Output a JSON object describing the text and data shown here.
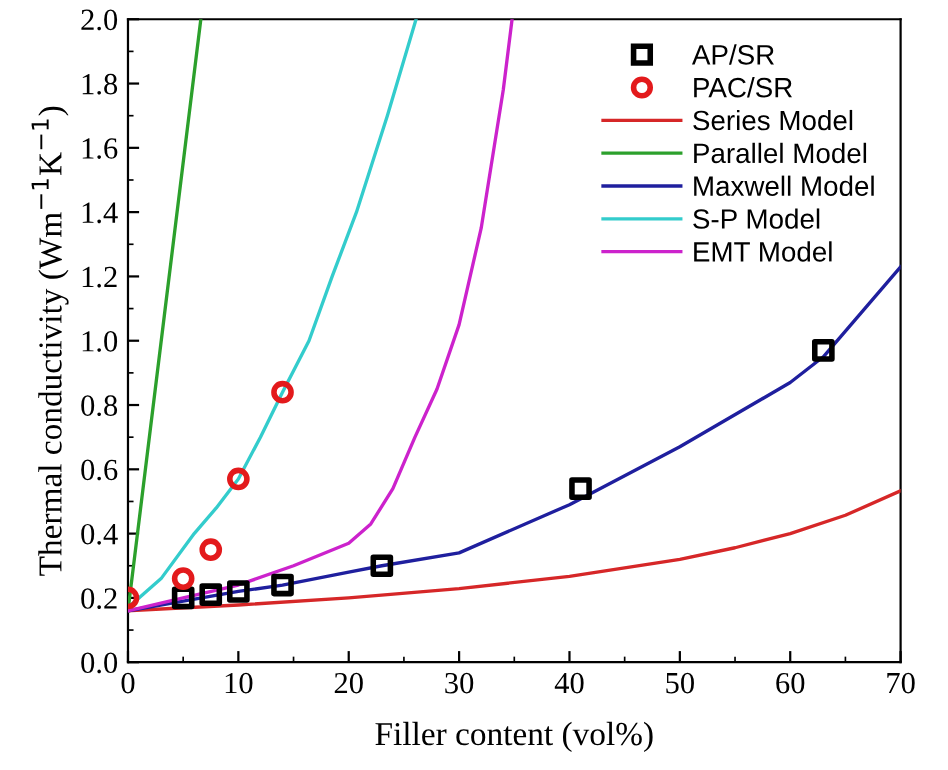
{
  "chart_data": {
    "type": "scatter",
    "xlabel": "Filler content (vol%)",
    "ylabel": "Thermal conductivity (Wm$^{−1}$K$^{−1}$)",
    "xlim": [
      0,
      70
    ],
    "ylim": [
      0,
      2.0
    ],
    "xticks": [
      0,
      10,
      20,
      30,
      40,
      50,
      60,
      70
    ],
    "yticks": [
      {
        "value": 0,
        "label": "0.0"
      },
      0.2,
      0.4,
      0.6,
      0.8,
      {
        "value": 1.0,
        "label": "1.0"
      },
      1.2,
      1.4,
      1.6,
      1.8,
      {
        "value": 2.0,
        "label": "2.0"
      }
    ],
    "grid": false,
    "legend": "top right",
    "series": [
      {
        "name": "AP/SR",
        "marker": "square",
        "color": "#000000",
        "x": [
          5,
          7.5,
          10,
          14,
          23,
          41,
          63
        ],
        "values": [
          0.2,
          0.21,
          0.22,
          0.24,
          0.3,
          0.54,
          0.97
        ]
      },
      {
        "name": "PAC/SR",
        "marker": "circle",
        "color": "#e31a1c",
        "x": [
          0,
          5,
          7.5,
          10,
          14
        ],
        "values": [
          0.2,
          0.26,
          0.35,
          0.57,
          0.84
        ]
      },
      {
        "name": "Series Model",
        "type": "line",
        "line_style": "solid",
        "color": "#d62728",
        "x": [
          0,
          10,
          20,
          30,
          40,
          50,
          55,
          60,
          65,
          70
        ],
        "values": [
          0.16,
          0.178,
          0.2,
          0.229,
          0.267,
          0.32,
          0.356,
          0.4,
          0.457,
          0.533
        ]
      },
      {
        "name": "Parallel Model",
        "type": "line",
        "line_style": "solid",
        "color": "#2ca02c",
        "x": [
          0,
          3.3,
          6.6
        ],
        "values": [
          0.16,
          1.08,
          2.0
        ]
      },
      {
        "name": "Maxwell Model",
        "type": "line",
        "line_style": "solid",
        "color": "#1f1f9e",
        "x": [
          0,
          5,
          10,
          14,
          20,
          23,
          30,
          40,
          50,
          60,
          63,
          70
        ],
        "values": [
          0.16,
          0.19,
          0.22,
          0.24,
          0.28,
          0.3,
          0.34,
          0.49,
          0.67,
          0.87,
          0.95,
          1.23
        ]
      },
      {
        "name": "S-P Model",
        "type": "line",
        "line_style": "solid",
        "color": "#33cccc",
        "x": [
          0,
          3,
          6,
          8,
          10,
          12,
          14,
          16.4,
          18.5,
          20.7,
          23.5,
          26.1
        ],
        "values": [
          0.17,
          0.26,
          0.4,
          0.48,
          0.57,
          0.7,
          0.84,
          1.0,
          1.2,
          1.4,
          1.7,
          2.0
        ]
      },
      {
        "name": "EMT Model",
        "type": "line",
        "line_style": "solid",
        "color": "#cc22cc",
        "x": [
          0,
          5,
          10,
          15,
          20,
          22,
          24,
          26,
          28,
          30,
          32,
          34,
          34.8
        ],
        "values": [
          0.16,
          0.2,
          0.24,
          0.3,
          0.37,
          0.43,
          0.54,
          0.7,
          0.85,
          1.05,
          1.35,
          1.78,
          2.0
        ]
      }
    ]
  }
}
